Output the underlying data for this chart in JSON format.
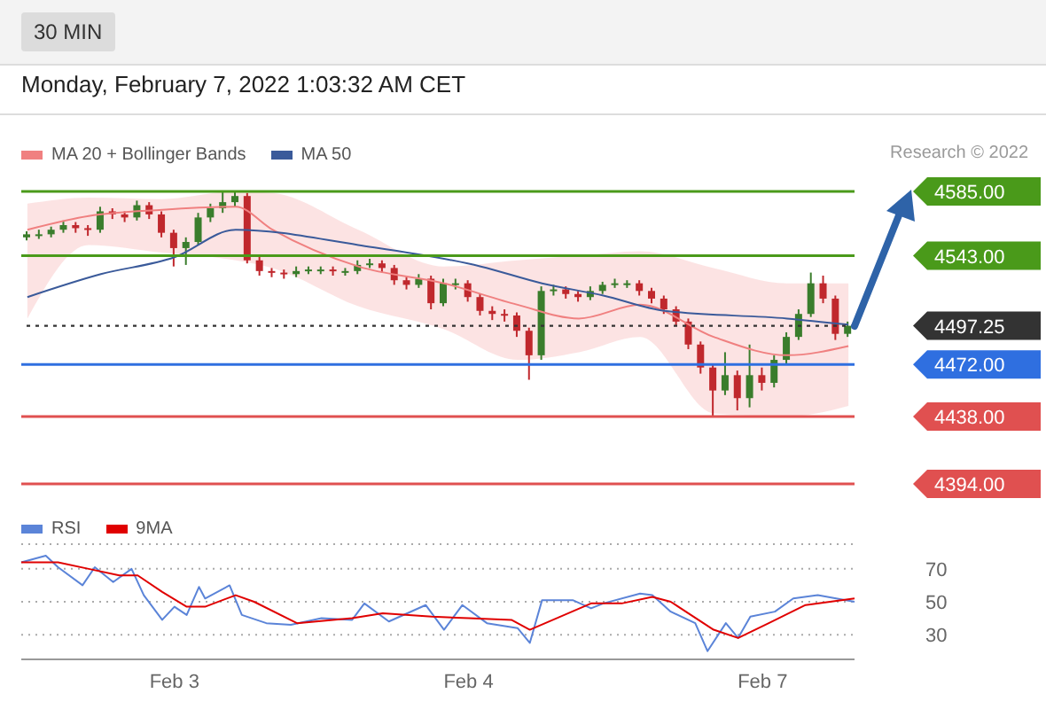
{
  "chart_data": [
    {
      "type": "candlestick",
      "subtitle": "30 MIN",
      "annotations": [
        "Monday, February 7, 2022 1:03:32 AM CET",
        "Research © 2022"
      ],
      "categories": [
        null,
        null,
        null,
        null,
        null,
        null,
        null,
        null,
        null,
        null,
        null,
        null,
        null,
        null,
        null,
        null,
        null,
        null,
        null,
        null,
        null,
        null,
        null,
        null,
        null,
        null,
        null,
        null,
        null,
        null,
        null,
        null,
        null,
        null,
        null,
        null,
        null,
        null,
        null,
        null,
        null,
        null,
        null,
        null,
        null,
        null,
        null,
        null,
        null,
        null,
        null,
        null,
        null,
        null,
        null,
        null,
        null,
        null,
        null,
        null,
        null,
        null,
        null,
        null,
        null,
        null,
        null,
        null
      ],
      "ohlc": [
        [
          4555,
          4559,
          4553,
          4557
        ],
        [
          4557,
          4560,
          4554,
          4557
        ],
        [
          4557,
          4562,
          4555,
          4560
        ],
        [
          4560,
          4566,
          4558,
          4563
        ],
        [
          4563,
          4565,
          4558,
          4561
        ],
        [
          4561,
          4563,
          4556,
          4560
        ],
        [
          4560,
          4575,
          4558,
          4572
        ],
        [
          4572,
          4574,
          4567,
          4570
        ],
        [
          4570,
          4572,
          4565,
          4568
        ],
        [
          4568,
          4579,
          4566,
          4576
        ],
        [
          4576,
          4578,
          4567,
          4570
        ],
        [
          4570,
          4572,
          4555,
          4558
        ],
        [
          4558,
          4560,
          4536,
          4548
        ],
        [
          4548,
          4555,
          4537,
          4552
        ],
        [
          4552,
          4571,
          4550,
          4568
        ],
        [
          4568,
          4577,
          4565,
          4574
        ],
        [
          4574,
          4585,
          4571,
          4578
        ],
        [
          4578,
          4585,
          4575,
          4582
        ],
        [
          4582,
          4584,
          4538,
          4540
        ],
        [
          4540,
          4543,
          4530,
          4533
        ],
        [
          4533,
          4535,
          4529,
          4532
        ],
        [
          4532,
          4534,
          4528,
          4531
        ],
        [
          4531,
          4536,
          4529,
          4533
        ],
        [
          4533,
          4536,
          4531,
          4534
        ],
        [
          4534,
          4536,
          4531,
          4534
        ],
        [
          4534,
          4536,
          4530,
          4533
        ],
        [
          4533,
          4535,
          4530,
          4533
        ],
        [
          4533,
          4540,
          4531,
          4537
        ],
        [
          4537,
          4541,
          4535,
          4538
        ],
        [
          4538,
          4540,
          4532,
          4535
        ],
        [
          4535,
          4537,
          4524,
          4527
        ],
        [
          4527,
          4529,
          4521,
          4524
        ],
        [
          4524,
          4531,
          4522,
          4528
        ],
        [
          4528,
          4530,
          4508,
          4512
        ],
        [
          4512,
          4528,
          4510,
          4525
        ],
        [
          4525,
          4528,
          4521,
          4525
        ],
        [
          4525,
          4527,
          4513,
          4516
        ],
        [
          4516,
          4518,
          4504,
          4507
        ],
        [
          4507,
          4510,
          4501,
          4505
        ],
        [
          4505,
          4508,
          4500,
          4504
        ],
        [
          4504,
          4506,
          4490,
          4494
        ],
        [
          4494,
          4496,
          4462,
          4478
        ],
        [
          4478,
          4523,
          4475,
          4520
        ],
        [
          4520,
          4524,
          4517,
          4521
        ],
        [
          4521,
          4523,
          4515,
          4518
        ],
        [
          4518,
          4520,
          4513,
          4516
        ],
        [
          4516,
          4523,
          4514,
          4520
        ],
        [
          4520,
          4526,
          4518,
          4524
        ],
        [
          4524,
          4528,
          4522,
          4525
        ],
        [
          4525,
          4527,
          4522,
          4525
        ],
        [
          4525,
          4527,
          4517,
          4520
        ],
        [
          4520,
          4522,
          4512,
          4515
        ],
        [
          4515,
          4517,
          4505,
          4508
        ],
        [
          4508,
          4510,
          4497,
          4500
        ],
        [
          4500,
          4502,
          4482,
          4485
        ],
        [
          4485,
          4487,
          4466,
          4470
        ],
        [
          4470,
          4472,
          4438,
          4455
        ],
        [
          4455,
          4480,
          4452,
          4465
        ],
        [
          4465,
          4468,
          4442,
          4450
        ],
        [
          4450,
          4485,
          4444,
          4465
        ],
        [
          4465,
          4470,
          4455,
          4460
        ],
        [
          4460,
          4478,
          4457,
          4475
        ],
        [
          4475,
          4493,
          4472,
          4490
        ],
        [
          4490,
          4508,
          4488,
          4505
        ],
        [
          4505,
          4532,
          4503,
          4525
        ],
        [
          4525,
          4530,
          4512,
          4515
        ],
        [
          4515,
          4517,
          4488,
          4492
        ],
        [
          4492,
          4500,
          4490,
          4497.25
        ]
      ],
      "series": [
        {
          "name": "MA 20 + Bollinger Bands",
          "type": "line",
          "color": "#f08080",
          "values": [
            4560,
            null,
            null,
            null,
            null,
            4569,
            null,
            null,
            null,
            null,
            null,
            4573,
            null,
            null,
            null,
            null,
            null,
            4575,
            null,
            null,
            4560,
            null,
            null,
            null,
            null,
            null,
            null,
            4536,
            null,
            null,
            null,
            null,
            null,
            null,
            4525,
            null,
            null,
            null,
            null,
            null,
            4511,
            null,
            null,
            null,
            null,
            4502,
            null,
            null,
            null,
            null,
            4511,
            null,
            null,
            null,
            null,
            null,
            4490,
            null,
            null,
            null,
            null,
            null,
            4478,
            null,
            null,
            null,
            null,
            4484
          ],
          "lower": [
            4502,
            null,
            null,
            null,
            null,
            4550,
            null,
            null,
            null,
            null,
            null,
            4545,
            null,
            null,
            null,
            null,
            null,
            4540,
            null,
            null,
            4535,
            null,
            null,
            null,
            null,
            null,
            null,
            4510,
            null,
            null,
            null,
            null,
            null,
            null,
            4495,
            null,
            null,
            null,
            null,
            null,
            4475,
            null,
            null,
            null,
            null,
            4480,
            null,
            null,
            null,
            null,
            4490,
            null,
            null,
            null,
            null,
            null,
            4440,
            null,
            null,
            null,
            null,
            null,
            4438,
            null,
            null,
            null,
            null,
            4445
          ],
          "upper": [
            4577,
            null,
            null,
            null,
            null,
            4581,
            null,
            null,
            null,
            null,
            null,
            4580,
            null,
            null,
            null,
            null,
            null,
            4585,
            null,
            null,
            4584,
            null,
            null,
            null,
            null,
            null,
            null,
            4560,
            null,
            null,
            null,
            null,
            null,
            null,
            4536,
            null,
            null,
            null,
            null,
            null,
            4540,
            null,
            null,
            null,
            null,
            4543,
            null,
            null,
            null,
            null,
            4546,
            null,
            null,
            null,
            null,
            null,
            4535,
            null,
            null,
            null,
            null,
            null,
            4525,
            null,
            null,
            null,
            null,
            4525
          ]
        },
        {
          "name": "MA 50",
          "type": "line",
          "color": "#3a5a9a",
          "values": [
            4516,
            null,
            null,
            null,
            null,
            null,
            4531,
            null,
            null,
            null,
            null,
            null,
            4542,
            null,
            null,
            null,
            null,
            4560,
            null,
            null,
            null,
            null,
            null,
            null,
            null,
            null,
            null,
            4550,
            null,
            null,
            null,
            null,
            null,
            null,
            null,
            null,
            null,
            4536,
            null,
            null,
            null,
            null,
            4525,
            null,
            null,
            null,
            null,
            4517,
            null,
            null,
            null,
            null,
            4507,
            null,
            null,
            null,
            null,
            null,
            null,
            null,
            null,
            null,
            4502,
            null,
            null,
            null,
            null,
            4498
          ]
        }
      ],
      "ref_lines": [
        {
          "axis": "y",
          "value": 4585,
          "color": "#4a9a1a"
        },
        {
          "axis": "y",
          "value": 4543,
          "color": "#4a9a1a"
        },
        {
          "axis": "y",
          "value": 4497.25,
          "color": "#333333",
          "line_style": "dotted"
        },
        {
          "axis": "y",
          "value": 4472,
          "color": "#2f6fe0"
        },
        {
          "axis": "y",
          "value": 4438,
          "color": "#e05050"
        },
        {
          "axis": "y",
          "value": 4394,
          "color": "#e05050"
        }
      ],
      "ylim": [
        4394,
        4585
      ],
      "yticks": [
        {
          "value": 4585,
          "label": "4585.00"
        },
        {
          "value": 4543,
          "label": "4543.00"
        },
        {
          "value": 4497.25,
          "label": "4497.25"
        },
        {
          "value": 4472,
          "label": "4472.00"
        },
        {
          "value": 4438,
          "label": "4438.00"
        },
        {
          "value": 4394,
          "label": "4394.00"
        }
      ],
      "legend": "top left",
      "tick_labels": "y"
    },
    {
      "type": "line",
      "categories": [
        null,
        null,
        null,
        null,
        null,
        null,
        null,
        null,
        null,
        null,
        null,
        null,
        null,
        null,
        null,
        null,
        null,
        null,
        null,
        null,
        null,
        null,
        null,
        null,
        null,
        "Feb 3",
        null,
        null,
        null,
        null,
        null,
        null,
        null,
        null,
        null,
        null,
        null,
        null,
        null,
        null,
        null,
        null,
        null,
        null,
        null,
        null,
        null,
        null,
        null,
        null,
        null,
        null,
        null,
        null,
        null,
        null,
        null,
        null,
        null,
        null,
        null,
        null,
        null,
        null,
        null,
        null,
        null,
        null,
        null,
        null,
        null,
        null,
        null,
        "Feb 4",
        null,
        null,
        null,
        null,
        null,
        null,
        null,
        null,
        null,
        null,
        null,
        null,
        null,
        null,
        null,
        null,
        null,
        null,
        null,
        null,
        null,
        null,
        null,
        null,
        null,
        null,
        null,
        null,
        null,
        null,
        null,
        null,
        null,
        null,
        null,
        null,
        null,
        null,
        null,
        null,
        null,
        null,
        null,
        null,
        null,
        null,
        null,
        "Feb 7",
        null,
        null,
        null,
        null,
        null,
        null,
        null,
        null,
        null,
        null,
        null,
        null,
        null,
        null,
        null
      ],
      "series": [
        {
          "name": "RSI",
          "color": "#5b84d8",
          "values": [
            74,
            null,
            null,
            null,
            78,
            null,
            71,
            null,
            null,
            null,
            60,
            null,
            71,
            null,
            null,
            62,
            null,
            null,
            70,
            null,
            54,
            null,
            null,
            39,
            null,
            47,
            null,
            42,
            null,
            59,
            52,
            null,
            null,
            null,
            60,
            null,
            42,
            null,
            null,
            null,
            37,
            null,
            null,
            null,
            36,
            null,
            null,
            null,
            null,
            40,
            null,
            null,
            null,
            null,
            39,
            null,
            49,
            null,
            null,
            null,
            38,
            null,
            null,
            null,
            null,
            null,
            48,
            null,
            null,
            33,
            null,
            null,
            48,
            null,
            null,
            null,
            37,
            null,
            null,
            null,
            null,
            34,
            null,
            25,
            null,
            51,
            null,
            null,
            null,
            null,
            51,
            null,
            null,
            46,
            null,
            49,
            null,
            null,
            null,
            null,
            null,
            55,
            null,
            54,
            null,
            null,
            44,
            null,
            null,
            null,
            37,
            null,
            20,
            null,
            null,
            37,
            null,
            28,
            null,
            41,
            null,
            null,
            null,
            44,
            null,
            null,
            52,
            null,
            null,
            null,
            54,
            null,
            null,
            null,
            null,
            null,
            50
          ]
        },
        {
          "name": "9MA",
          "color": "#e00000",
          "values": [
            74,
            null,
            null,
            null,
            null,
            null,
            74,
            null,
            null,
            null,
            null,
            70,
            null,
            null,
            null,
            null,
            66,
            null,
            null,
            66,
            null,
            null,
            null,
            56,
            null,
            null,
            null,
            47,
            null,
            null,
            47,
            null,
            null,
            null,
            null,
            54,
            null,
            null,
            50,
            null,
            null,
            null,
            null,
            null,
            null,
            37,
            null,
            null,
            null,
            null,
            null,
            null,
            null,
            null,
            40,
            null,
            null,
            null,
            null,
            43,
            null,
            null,
            null,
            null,
            null,
            null,
            null,
            41,
            null,
            null,
            null,
            null,
            null,
            40,
            null,
            null,
            null,
            null,
            null,
            null,
            39,
            null,
            null,
            33,
            null,
            null,
            null,
            null,
            null,
            null,
            null,
            null,
            null,
            49,
            null,
            null,
            null,
            null,
            49,
            null,
            null,
            null,
            null,
            53,
            null,
            null,
            50,
            null,
            null,
            null,
            null,
            null,
            null,
            33,
            null,
            null,
            null,
            28,
            null,
            null,
            null,
            null,
            37,
            null,
            null,
            null,
            null,
            null,
            48,
            null,
            null,
            null,
            null,
            null,
            null,
            null,
            52
          ]
        }
      ],
      "ylim": [
        15,
        85
      ],
      "yticks": [
        70,
        50,
        30
      ],
      "grid": "y",
      "legend": "top left",
      "line_style": "solid",
      "marker": "none"
    }
  ]
}
